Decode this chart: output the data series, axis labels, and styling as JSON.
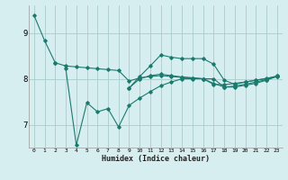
{
  "bg_color": "#d7eef0",
  "grid_color": "#aacccc",
  "line_color": "#1a7a6e",
  "xlabel": "Humidex (Indice chaleur)",
  "x_ticks": [
    0,
    1,
    2,
    3,
    4,
    5,
    6,
    7,
    8,
    9,
    10,
    11,
    12,
    13,
    14,
    15,
    16,
    17,
    18,
    19,
    20,
    21,
    22,
    23
  ],
  "y_ticks": [
    7,
    8,
    9
  ],
  "xlim": [
    -0.5,
    23.5
  ],
  "ylim": [
    6.5,
    9.6
  ],
  "line1_x": [
    0,
    1,
    2
  ],
  "line1_y": [
    9.38,
    8.83,
    8.35
  ],
  "line2_x": [
    2,
    3,
    4,
    5,
    6,
    7,
    8,
    9,
    10,
    11,
    12,
    13,
    14,
    15,
    16,
    17,
    18,
    19,
    20,
    21,
    22,
    23
  ],
  "line2_y": [
    8.35,
    8.28,
    8.26,
    8.24,
    8.22,
    8.2,
    8.18,
    7.95,
    8.02,
    8.05,
    8.07,
    8.05,
    8.03,
    8.02,
    8.0,
    7.88,
    7.87,
    7.9,
    7.93,
    7.97,
    8.0,
    8.05
  ],
  "line3_x": [
    3,
    4,
    5,
    6,
    7,
    8,
    9,
    10,
    11,
    12,
    13,
    14,
    15,
    16,
    17,
    18,
    19,
    20,
    21,
    22,
    23
  ],
  "line3_y": [
    8.22,
    6.55,
    7.48,
    7.28,
    7.35,
    6.95,
    7.42,
    7.58,
    7.72,
    7.85,
    7.93,
    8.0,
    8.0,
    8.0,
    8.0,
    7.82,
    7.82,
    7.86,
    7.9,
    7.97,
    8.05
  ],
  "line4_x": [
    9,
    10,
    11,
    12,
    13,
    14,
    15,
    16,
    17,
    18,
    19,
    20,
    21,
    22,
    23
  ],
  "line4_y": [
    7.8,
    8.05,
    8.28,
    8.52,
    8.47,
    8.44,
    8.44,
    8.44,
    8.32,
    7.97,
    7.88,
    7.93,
    7.97,
    8.01,
    8.06
  ],
  "line5_x": [
    9,
    10,
    11,
    12,
    13,
    14,
    15,
    16,
    17,
    18,
    19,
    20,
    21,
    22,
    23
  ],
  "line5_y": [
    7.8,
    8.0,
    8.07,
    8.1,
    8.07,
    8.04,
    8.02,
    8.0,
    7.9,
    7.82,
    7.84,
    7.88,
    7.93,
    7.98,
    8.06
  ]
}
